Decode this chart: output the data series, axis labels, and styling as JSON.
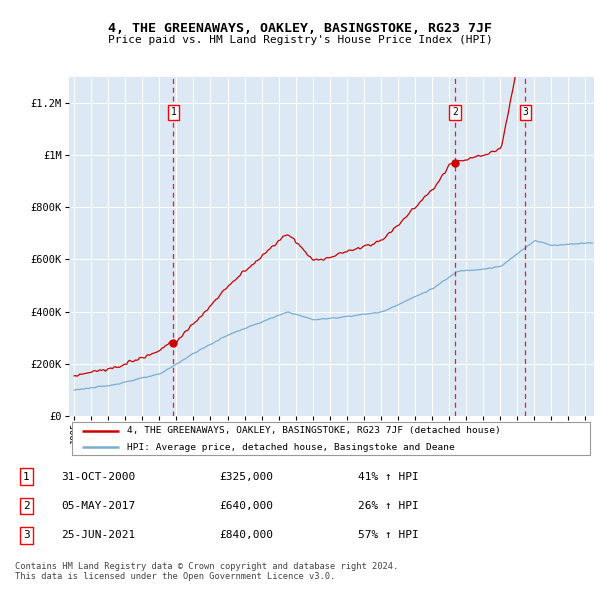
{
  "title": "4, THE GREENAWAYS, OAKLEY, BASINGSTOKE, RG23 7JF",
  "subtitle": "Price paid vs. HM Land Registry's House Price Index (HPI)",
  "bg_color": "#dce9f5",
  "sale_color": "#cc0000",
  "hpi_color": "#7aadd4",
  "ylim": [
    0,
    1300000
  ],
  "yticks": [
    0,
    200000,
    400000,
    600000,
    800000,
    1000000,
    1200000
  ],
  "ytick_labels": [
    "£0",
    "£200K",
    "£400K",
    "£600K",
    "£800K",
    "£1M",
    "£1.2M"
  ],
  "transactions": [
    {
      "date_num": 2000.83,
      "price": 325000,
      "label": "1"
    },
    {
      "date_num": 2017.34,
      "price": 640000,
      "label": "2"
    },
    {
      "date_num": 2021.48,
      "price": 840000,
      "label": "3"
    }
  ],
  "legend_sale": "4, THE GREENAWAYS, OAKLEY, BASINGSTOKE, RG23 7JF (detached house)",
  "legend_hpi": "HPI: Average price, detached house, Basingstoke and Deane",
  "table": [
    {
      "num": "1",
      "date": "31-OCT-2000",
      "price": "£325,000",
      "change": "41% ↑ HPI"
    },
    {
      "num": "2",
      "date": "05-MAY-2017",
      "price": "£640,000",
      "change": "26% ↑ HPI"
    },
    {
      "num": "3",
      "date": "25-JUN-2021",
      "price": "£840,000",
      "change": "57% ↑ HPI"
    }
  ],
  "footer": "Contains HM Land Registry data © Crown copyright and database right 2024.\nThis data is licensed under the Open Government Licence v3.0.",
  "xmin": 1994.7,
  "xmax": 2025.5
}
